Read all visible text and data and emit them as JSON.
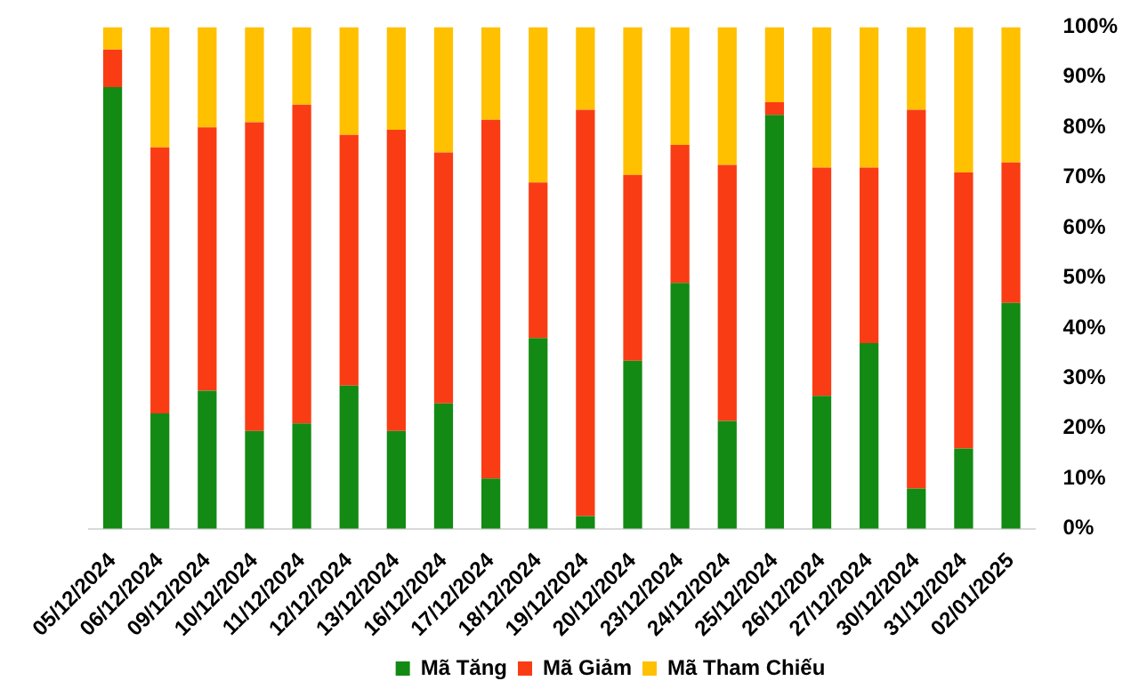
{
  "chart_data": {
    "type": "bar",
    "stacked": true,
    "categories": [
      "05/12/2024",
      "06/12/2024",
      "09/12/2024",
      "10/12/2024",
      "11/12/2024",
      "12/12/2024",
      "13/12/2024",
      "16/12/2024",
      "17/12/2024",
      "18/12/2024",
      "19/12/2024",
      "20/12/2024",
      "23/12/2024",
      "24/12/2024",
      "25/12/2024",
      "26/12/2024",
      "27/12/2024",
      "30/12/2024",
      "31/12/2024",
      "02/01/2025"
    ],
    "series": [
      {
        "name": "Mã Tăng",
        "color": "#138a13",
        "values": [
          88,
          23,
          27.5,
          19.5,
          21,
          28.5,
          19.5,
          25,
          10,
          38,
          2.5,
          33.5,
          49,
          21.5,
          82.5,
          26.5,
          37,
          8,
          16,
          45
        ]
      },
      {
        "name": "Mã Giảm",
        "color": "#fa3c14",
        "values": [
          7.5,
          53,
          52.5,
          61.5,
          63.5,
          50,
          60,
          50,
          71.5,
          31,
          81,
          37,
          27.5,
          51,
          2.5,
          45.5,
          35,
          75.5,
          55,
          28
        ]
      },
      {
        "name": "Mã Tham Chiếu",
        "color": "#ffc000",
        "values": [
          4.5,
          24,
          20,
          19,
          15.5,
          21.5,
          20.5,
          25,
          18.5,
          31,
          16.5,
          29.5,
          23.5,
          27.5,
          15,
          28,
          28,
          16.5,
          29,
          27
        ]
      }
    ],
    "ylim": [
      0,
      100
    ],
    "yticks": [
      {
        "value": 0,
        "label": "0%"
      },
      {
        "value": 10,
        "label": "10%"
      },
      {
        "value": 20,
        "label": "20%"
      },
      {
        "value": 30,
        "label": "30%"
      },
      {
        "value": 40,
        "label": "40%"
      },
      {
        "value": 50,
        "label": "50%"
      },
      {
        "value": 60,
        "label": "60%"
      },
      {
        "value": 70,
        "label": "70%"
      },
      {
        "value": 80,
        "label": "80%"
      },
      {
        "value": 90,
        "label": "90%"
      },
      {
        "value": 100,
        "label": "100%"
      }
    ],
    "grid": false,
    "legend": "bottom"
  }
}
